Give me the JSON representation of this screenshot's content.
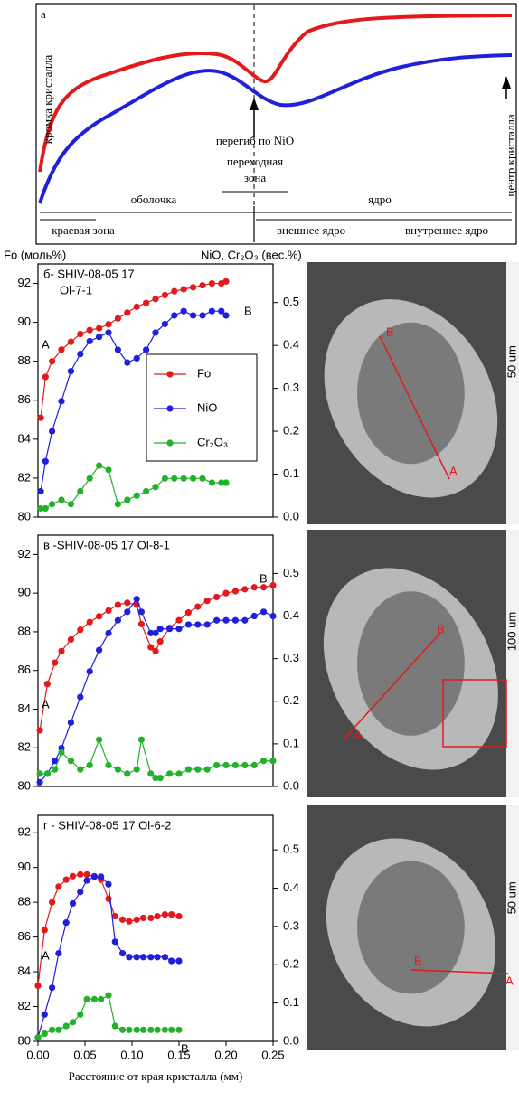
{
  "schematic": {
    "panel": "а",
    "edge": "кромка кристалла",
    "inflection": "перегиб по NiO",
    "transition": [
      "переходная",
      "зона"
    ],
    "shell": "оболочка",
    "core": "ядро",
    "rim_zone": "краевая зона",
    "outer_core": "внешнее ядро",
    "inner_core": "внутреннее ядро",
    "center": "центр кристалла"
  },
  "chart_data": [
    {
      "type": "line",
      "title": [
        "б- SHIV-08-05 17",
        "Ol-7-1"
      ],
      "y_label": "Fo (моль%)",
      "y2_label": "NiO, Cr₂O₃ (вес.%)",
      "xlim": [
        0,
        0.25
      ],
      "ylim": [
        80,
        93
      ],
      "yticks": [
        80,
        82,
        84,
        86,
        88,
        90,
        92
      ],
      "y2lim": [
        0,
        0.59
      ],
      "y2ticks": [
        {
          "value": 0,
          "label": "0.0"
        },
        0.1,
        0.2,
        0.3,
        0.4,
        0.5
      ],
      "legend": "center",
      "annotations": [
        "A",
        "B"
      ],
      "image_labels": [
        "A",
        "B"
      ],
      "scale_label": "50 um",
      "x": [
        0.003,
        0.008,
        0.015,
        0.025,
        0.035,
        0.045,
        0.055,
        0.065,
        0.075,
        0.085,
        0.095,
        0.105,
        0.115,
        0.125,
        0.135,
        0.145,
        0.155,
        0.165,
        0.175,
        0.185,
        0.195,
        0.2
      ],
      "series": [
        {
          "name": "Fo",
          "color": "#e3191c",
          "values": [
            85.1,
            87.2,
            88.0,
            88.6,
            89.0,
            89.4,
            89.6,
            89.7,
            89.9,
            90.2,
            90.5,
            90.8,
            91.0,
            91.2,
            91.4,
            91.6,
            91.7,
            91.8,
            91.9,
            92.0,
            92.0,
            92.1
          ]
        },
        {
          "name": "NiO",
          "color": "#1f1fdc",
          "axis": "y2",
          "values": [
            0.06,
            0.13,
            0.2,
            0.27,
            0.34,
            0.38,
            0.41,
            0.42,
            0.43,
            0.39,
            0.36,
            0.37,
            0.39,
            0.43,
            0.45,
            0.47,
            0.48,
            0.47,
            0.47,
            0.48,
            0.48,
            0.47
          ]
        },
        {
          "name": "Cr₂O₃",
          "color": "#22b22a",
          "axis": "y2",
          "values": [
            0.02,
            0.02,
            0.03,
            0.04,
            0.03,
            0.06,
            0.09,
            0.12,
            0.11,
            0.03,
            0.04,
            0.05,
            0.06,
            0.07,
            0.09,
            0.09,
            0.09,
            0.09,
            0.09,
            0.08,
            0.08,
            0.08
          ]
        }
      ]
    },
    {
      "type": "line",
      "title": [
        "в -SHIV-08-05 17 Ol-8-1"
      ],
      "xlim": [
        0,
        0.25
      ],
      "ylim": [
        80,
        93
      ],
      "yticks": [
        80,
        82,
        84,
        86,
        88,
        90,
        92
      ],
      "y2lim": [
        0,
        0.59
      ],
      "y2ticks": [
        {
          "value": 0,
          "label": "0.0"
        },
        0.1,
        0.2,
        0.3,
        0.4,
        0.5
      ],
      "annotations": [
        "A",
        "B"
      ],
      "image_labels": [
        "A",
        "B"
      ],
      "scale_label": "100 um",
      "x": [
        0.002,
        0.01,
        0.018,
        0.025,
        0.035,
        0.045,
        0.055,
        0.065,
        0.075,
        0.085,
        0.095,
        0.105,
        0.11,
        0.12,
        0.125,
        0.13,
        0.14,
        0.15,
        0.16,
        0.17,
        0.18,
        0.19,
        0.2,
        0.21,
        0.22,
        0.23,
        0.24,
        0.25
      ],
      "series": [
        {
          "color": "#e3191c",
          "values": [
            82.9,
            85.3,
            86.4,
            87.0,
            87.6,
            88.1,
            88.5,
            88.8,
            89.1,
            89.4,
            89.5,
            89.4,
            88.4,
            87.2,
            87.0,
            87.5,
            88.2,
            88.6,
            89.0,
            89.3,
            89.6,
            89.8,
            90.0,
            90.1,
            90.2,
            90.3,
            90.3,
            90.4
          ]
        },
        {
          "color": "#1f1fdc",
          "axis": "y2",
          "values": [
            0.01,
            0.03,
            0.06,
            0.09,
            0.15,
            0.21,
            0.27,
            0.32,
            0.36,
            0.39,
            0.41,
            0.44,
            0.41,
            0.36,
            0.36,
            0.37,
            0.37,
            0.37,
            0.38,
            0.38,
            0.38,
            0.39,
            0.39,
            0.39,
            0.39,
            0.4,
            0.41,
            0.4
          ]
        },
        {
          "color": "#22b22a",
          "axis": "y2",
          "values": [
            0.03,
            0.03,
            0.04,
            0.08,
            0.06,
            0.04,
            0.05,
            0.11,
            0.05,
            0.04,
            0.03,
            0.04,
            0.11,
            0.03,
            0.02,
            0.02,
            0.03,
            0.03,
            0.04,
            0.04,
            0.04,
            0.05,
            0.05,
            0.05,
            0.05,
            0.05,
            0.06,
            0.06
          ]
        }
      ]
    },
    {
      "type": "line",
      "title": [
        "г - SHIV-08-05 17 Ol-6-2"
      ],
      "x_label": "Расстояние от края кристалла (мм)",
      "xlim": [
        0,
        0.25
      ],
      "xticks": [
        {
          "value": 0,
          "label": "0.00"
        },
        0.05,
        {
          "value": 0.1,
          "label": "0.10"
        },
        0.15,
        {
          "value": 0.2,
          "label": "0.20"
        },
        0.25
      ],
      "ylim": [
        80,
        93
      ],
      "yticks": [
        80,
        82,
        84,
        86,
        88,
        90,
        92
      ],
      "y2lim": [
        0,
        0.59
      ],
      "y2ticks": [
        {
          "value": 0,
          "label": "0.0"
        },
        0.1,
        0.2,
        0.3,
        0.4,
        0.5
      ],
      "annotations": [
        "A",
        "B"
      ],
      "image_labels": [
        "B",
        "A"
      ],
      "scale_label": "50 um",
      "x": [
        0.0,
        0.007,
        0.015,
        0.022,
        0.03,
        0.037,
        0.045,
        0.052,
        0.06,
        0.067,
        0.075,
        0.082,
        0.09,
        0.097,
        0.105,
        0.112,
        0.12,
        0.127,
        0.135,
        0.142,
        0.15
      ],
      "series": [
        {
          "color": "#e3191c",
          "values": [
            83.2,
            86.4,
            88.0,
            88.9,
            89.3,
            89.5,
            89.6,
            89.6,
            89.5,
            89.3,
            88.2,
            87.2,
            87.0,
            86.9,
            87.0,
            87.1,
            87.1,
            87.2,
            87.3,
            87.3,
            87.2
          ]
        },
        {
          "color": "#1f1fdc",
          "axis": "y2",
          "values": [
            0.01,
            0.07,
            0.14,
            0.23,
            0.31,
            0.36,
            0.39,
            0.42,
            0.43,
            0.43,
            0.41,
            0.26,
            0.23,
            0.22,
            0.22,
            0.22,
            0.22,
            0.22,
            0.22,
            0.21,
            0.21
          ]
        },
        {
          "color": "#22b22a",
          "axis": "y2",
          "values": [
            0.01,
            0.02,
            0.03,
            0.03,
            0.04,
            0.05,
            0.07,
            0.11,
            0.11,
            0.11,
            0.12,
            0.04,
            0.03,
            0.03,
            0.03,
            0.03,
            0.03,
            0.03,
            0.03,
            0.03,
            0.03
          ]
        }
      ]
    }
  ]
}
